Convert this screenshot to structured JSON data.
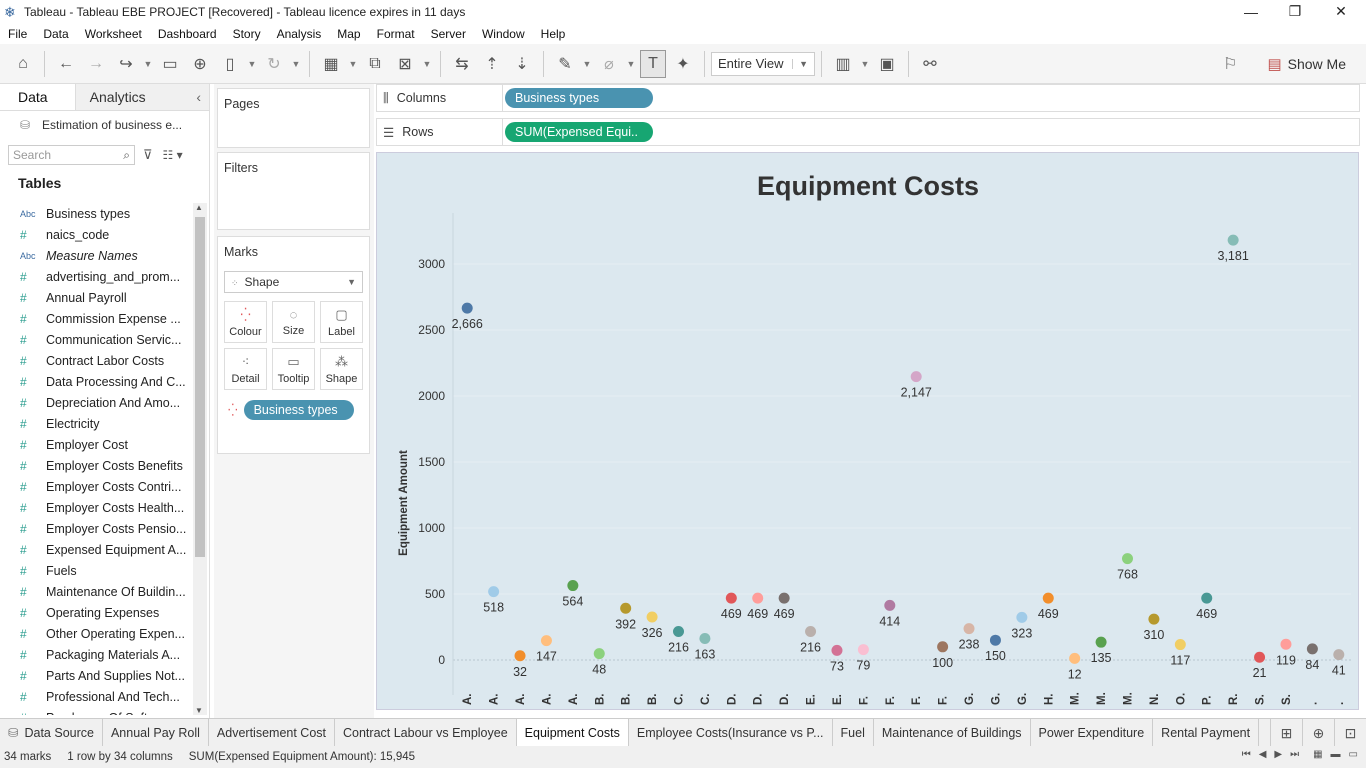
{
  "window": {
    "title": "Tableau - Tableau EBE PROJECT [Recovered] - Tableau licence expires in 11 days",
    "minimize": "—",
    "restore": "❐",
    "close": "✕"
  },
  "menu": [
    "File",
    "Data",
    "Worksheet",
    "Dashboard",
    "Story",
    "Analysis",
    "Map",
    "Format",
    "Server",
    "Window",
    "Help"
  ],
  "toolbar": {
    "fit_dropdown": "Entire View",
    "show_me": "Show Me"
  },
  "data_pane": {
    "tab_data": "Data",
    "tab_analytics": "Analytics",
    "datasource": "Estimation of business e...",
    "search_placeholder": "Search",
    "tables_heading": "Tables",
    "fields": [
      {
        "type": "Abc",
        "name": "Business types",
        "italic": false
      },
      {
        "type": "#",
        "name": "naics_code",
        "italic": false
      },
      {
        "type": "Abc",
        "name": "Measure Names",
        "italic": true
      },
      {
        "type": "#",
        "name": "advertising_and_prom...",
        "italic": false
      },
      {
        "type": "#",
        "name": "Annual Payroll",
        "italic": false
      },
      {
        "type": "#",
        "name": "Commission Expense ...",
        "italic": false
      },
      {
        "type": "#",
        "name": "Communication Servic...",
        "italic": false
      },
      {
        "type": "#",
        "name": "Contract Labor Costs",
        "italic": false
      },
      {
        "type": "#",
        "name": "Data Processing And C...",
        "italic": false
      },
      {
        "type": "#",
        "name": "Depreciation And Amo...",
        "italic": false
      },
      {
        "type": "#",
        "name": "Electricity",
        "italic": false
      },
      {
        "type": "#",
        "name": "Employer Cost",
        "italic": false
      },
      {
        "type": "#",
        "name": "Employer Costs Benefits",
        "italic": false
      },
      {
        "type": "#",
        "name": "Employer Costs Contri...",
        "italic": false
      },
      {
        "type": "#",
        "name": "Employer Costs Health...",
        "italic": false
      },
      {
        "type": "#",
        "name": "Employer Costs Pensio...",
        "italic": false
      },
      {
        "type": "#",
        "name": "Expensed Equipment A...",
        "italic": false
      },
      {
        "type": "#",
        "name": "Fuels",
        "italic": false
      },
      {
        "type": "#",
        "name": "Maintenance Of Buildin...",
        "italic": false
      },
      {
        "type": "#",
        "name": "Operating Expenses",
        "italic": false
      },
      {
        "type": "#",
        "name": "Other Operating Expen...",
        "italic": false
      },
      {
        "type": "#",
        "name": "Packaging Materials A...",
        "italic": false
      },
      {
        "type": "#",
        "name": "Parts And Supplies Not...",
        "italic": false
      },
      {
        "type": "#",
        "name": "Professional And Tech...",
        "italic": false
      },
      {
        "type": "#",
        "name": "Purchases Of Software",
        "italic": false
      }
    ]
  },
  "shelves": {
    "pages": "Pages",
    "filters": "Filters",
    "marks": "Marks",
    "mark_type": "Shape",
    "mark_buttons": [
      {
        "label": "Colour",
        "icon": "colour-icon"
      },
      {
        "label": "Size",
        "icon": "size-icon"
      },
      {
        "label": "Label",
        "icon": "label-icon"
      },
      {
        "label": "Detail",
        "icon": "detail-icon"
      },
      {
        "label": "Tooltip",
        "icon": "tooltip-icon"
      },
      {
        "label": "Shape",
        "icon": "shape-icon"
      }
    ],
    "colour_pill": "Business types",
    "columns_label": "Columns",
    "columns_pill": "Business types",
    "rows_label": "Rows",
    "rows_pill": "SUM(Expensed Equi.."
  },
  "chart_data": {
    "type": "scatter",
    "title": "Equipment Costs",
    "ylabel": "Equipment Amount",
    "xlabel": "",
    "ylim": [
      -150,
      3400
    ],
    "yticks": [
      0,
      500,
      1000,
      1500,
      2000,
      2500,
      3000
    ],
    "grid": true,
    "legend": "none",
    "categories": [
      "A.",
      "A.",
      "A.",
      "A.",
      "A.",
      "B.",
      "B.",
      "B.",
      "C.",
      "C.",
      "D.",
      "D.",
      "D.",
      "E.",
      "E.",
      "F.",
      "F.",
      "F.",
      "F.",
      "G.",
      "G.",
      "G.",
      "H.",
      "M.",
      "M.",
      "M.",
      "N.",
      "O.",
      "P.",
      "R.",
      "S.",
      "S.",
      ".",
      "."
    ],
    "values": [
      2666,
      518,
      32,
      147,
      564,
      48,
      392,
      326,
      216,
      163,
      469,
      469,
      469,
      216,
      73,
      79,
      414,
      2147,
      100,
      238,
      150,
      323,
      469,
      12,
      135,
      768,
      310,
      117,
      469,
      3181,
      21,
      119,
      84,
      41
    ],
    "colors": [
      "#4e79a7",
      "#a0cbe8",
      "#f28e2b",
      "#ffbe7d",
      "#59a14f",
      "#8cd17d",
      "#b6992d",
      "#f1ce63",
      "#499894",
      "#86bcb6",
      "#e15759",
      "#ff9d9a",
      "#79706e",
      "#bab0ac",
      "#d37295",
      "#fabfd2",
      "#b07aa1",
      "#d4a6c8",
      "#9d7660",
      "#d7b5a6",
      "#4e79a7",
      "#a0cbe8",
      "#f28e2b",
      "#ffbe7d",
      "#59a14f",
      "#8cd17d",
      "#b6992d",
      "#f1ce63",
      "#499894",
      "#86bcb6",
      "#e15759",
      "#ff9d9a",
      "#79706e",
      "#bab0ac"
    ]
  },
  "sheet_tabs": {
    "datasource": "Data Source",
    "sheets": [
      "Annual Pay Roll",
      "Advertisement Cost",
      "Contract Labour vs Employee",
      "Equipment  Costs",
      "Employee Costs(Insurance vs P...",
      "Fuel",
      "Maintenance of Buildings",
      "Power Expenditure",
      "Rental Payment"
    ],
    "active_index": 3
  },
  "status": {
    "marks": "34 marks",
    "dims": "1 row  by  34 columns",
    "sum": "SUM(Expensed Equipment Amount): 15,945"
  }
}
